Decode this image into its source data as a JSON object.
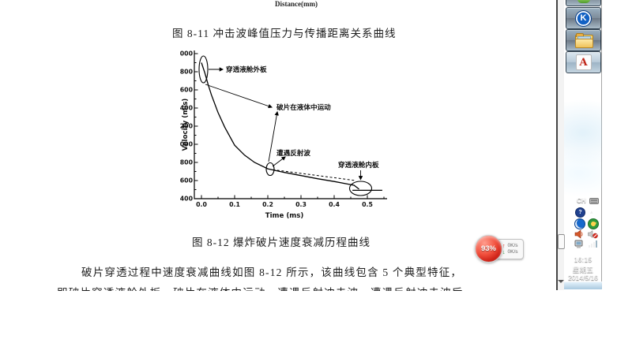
{
  "document": {
    "prev_figure_axis_label": "Distance(mm)",
    "figure_8_11_caption": "图 8-11 冲击波峰值压力与传播距离关系曲线",
    "figure_8_12_caption": "图 8-12 爆炸破片速度衰减历程曲线",
    "paragraph_line1": "破片穿透过程中速度衰减曲线如图 8-12 所示，该曲线包含 5 个典型特征，",
    "paragraph_line2": "即破片穿透液舱外板，破片在液体中运动，遭遇反射冲击波，遭遇反射冲击波后"
  },
  "chart_data": {
    "type": "line",
    "title": "图 8-12 爆炸破片速度衰减历程曲线",
    "xlabel": "Time (ms)",
    "ylabel": "Velocity (m/s)",
    "xlim": [
      0,
      0.55
    ],
    "ylim": [
      400,
      2000
    ],
    "grid": false,
    "legend": "none",
    "xticks": [
      "0.0",
      "0.1",
      "0.2",
      "0.3",
      "0.4",
      "0.5"
    ],
    "yticks": [
      "2000",
      "1800",
      "1600",
      "1400",
      "1200",
      "1000",
      "800",
      "600",
      "400"
    ],
    "series": [
      {
        "name": "fragment-velocity-decay",
        "style": "solid",
        "points": [
          [
            0,
            1900
          ],
          [
            0.01,
            1790
          ],
          [
            0.02,
            1660
          ],
          [
            0.03,
            1545
          ],
          [
            0.05,
            1350
          ],
          [
            0.07,
            1190
          ],
          [
            0.1,
            990
          ],
          [
            0.13,
            880
          ],
          [
            0.16,
            800
          ],
          [
            0.2,
            730
          ],
          [
            0.25,
            690
          ],
          [
            0.3,
            655
          ],
          [
            0.35,
            620
          ],
          [
            0.4,
            590
          ],
          [
            0.44,
            562
          ],
          [
            0.46,
            548
          ],
          [
            0.475,
            505
          ]
        ]
      },
      {
        "name": "after-inner-plate-residual",
        "style": "solid",
        "points": [
          [
            0.455,
            492
          ],
          [
            0.545,
            492
          ]
        ]
      },
      {
        "name": "no-reflection-extrapolation",
        "style": "dashed",
        "points": [
          [
            0.215,
            720
          ],
          [
            0.465,
            600
          ]
        ]
      }
    ],
    "annotations": [
      {
        "label": "穿透液舱外板",
        "target_point": [
          0.005,
          1850
        ]
      },
      {
        "label": "破片在液体中运动",
        "target_point": [
          0.1,
          1000
        ]
      },
      {
        "label": "遭遇反射波",
        "target_point": [
          0.205,
          720
        ]
      },
      {
        "label": "穿透液舱内板",
        "target_point": [
          0.475,
          530
        ]
      }
    ]
  },
  "taskbar": {
    "buttons": [
      {
        "icon": "partial-app-icon"
      },
      {
        "icon": "k-app-icon"
      },
      {
        "icon": "explorer-folder-icon"
      },
      {
        "icon": "adobe-reader-icon"
      }
    ],
    "tray": {
      "ime_label": "CH",
      "time": "16:15",
      "weekday": "星期五",
      "date": "2014/5/16"
    }
  },
  "speed_widget": {
    "percent": "93%",
    "up_arrow": "↑",
    "up_value": "0K/s",
    "down_arrow": "↓",
    "down_value": "0K/s"
  }
}
